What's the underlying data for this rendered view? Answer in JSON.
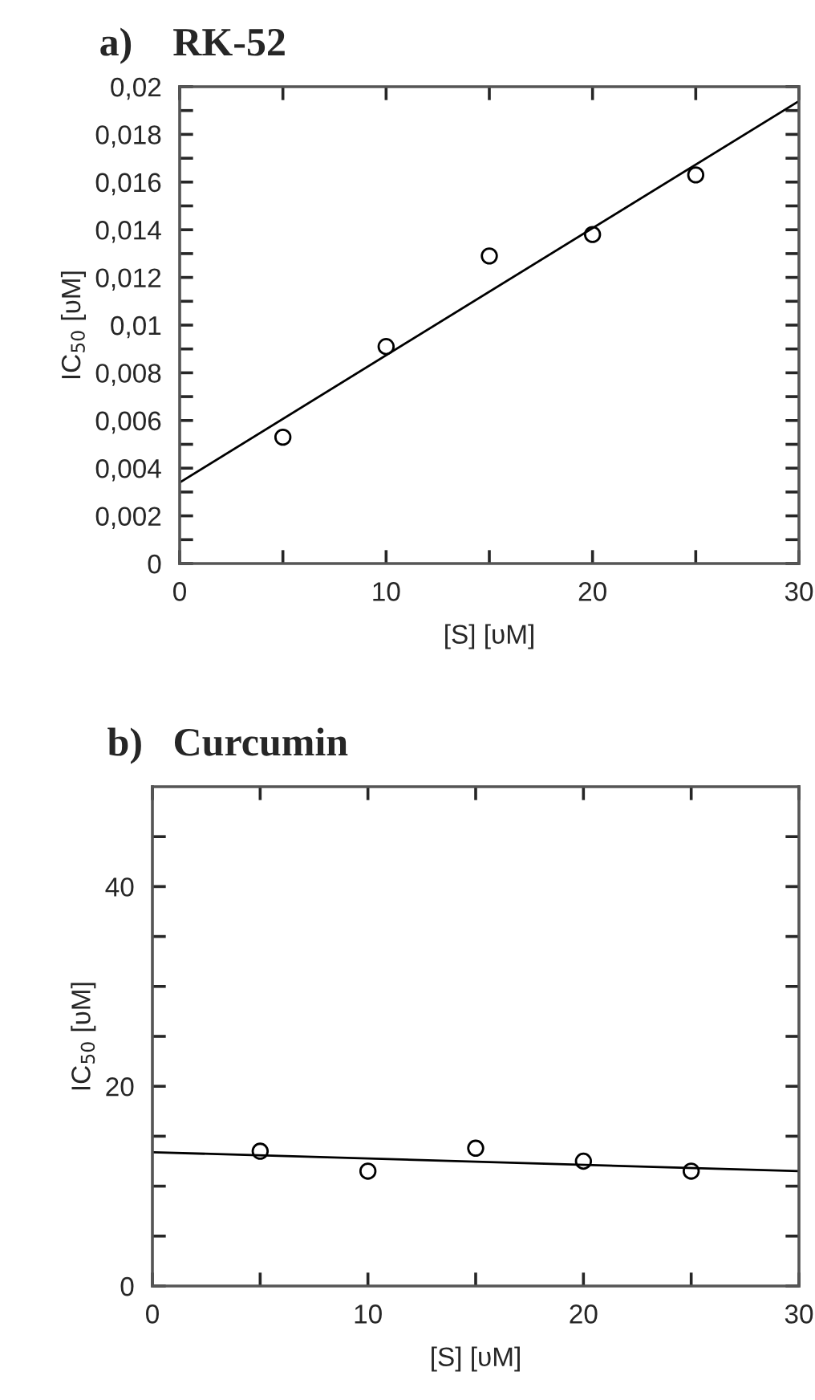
{
  "chart_data": [
    {
      "type": "scatter",
      "title": "a)    RK-52",
      "xlabel": "[S] [υM]",
      "ylabel": "IC$_{50}$ [υM]",
      "xlim": [
        0,
        30
      ],
      "ylim": [
        0,
        0.02
      ],
      "xticks": [
        0,
        {
          "value": 5,
          "label": null
        },
        10,
        {
          "value": 15,
          "label": null
        },
        20,
        {
          "value": 25,
          "label": null
        },
        30
      ],
      "yticks": [
        {
          "value": 0,
          "label": "0"
        },
        {
          "value": 0.001,
          "label": null
        },
        {
          "value": 0.002,
          "label": "0,002"
        },
        {
          "value": 0.003,
          "label": null
        },
        {
          "value": 0.004,
          "label": "0,004"
        },
        {
          "value": 0.005,
          "label": null
        },
        {
          "value": 0.006,
          "label": "0,006"
        },
        {
          "value": 0.007,
          "label": null
        },
        {
          "value": 0.008,
          "label": "0,008"
        },
        {
          "value": 0.009,
          "label": null
        },
        {
          "value": 0.01,
          "label": "0,01"
        },
        {
          "value": 0.011,
          "label": null
        },
        {
          "value": 0.012,
          "label": "0,012"
        },
        {
          "value": 0.013,
          "label": null
        },
        {
          "value": 0.014,
          "label": "0,014"
        },
        {
          "value": 0.015,
          "label": null
        },
        {
          "value": 0.016,
          "label": "0,016"
        },
        {
          "value": 0.017,
          "label": null
        },
        {
          "value": 0.018,
          "label": "0,018"
        },
        {
          "value": 0.019,
          "label": null
        },
        {
          "value": 0.02,
          "label": "0,02"
        }
      ],
      "grid": false,
      "legend": false,
      "series": [
        {
          "marker": "circle",
          "color": "#000000",
          "x": [
            5,
            10,
            15,
            20,
            25
          ],
          "values": [
            0.0053,
            0.0091,
            0.0129,
            0.0138,
            0.0163
          ]
        },
        {
          "type": "line",
          "marker": "none",
          "line_style": "solid",
          "color": "#000000",
          "x": [
            0,
            30
          ],
          "values": [
            0.0034,
            0.0194
          ]
        }
      ]
    },
    {
      "type": "scatter",
      "title": "b)   Curcumin",
      "xlabel": "[S] [υM]",
      "ylabel": "IC$_{50}$ [υM]",
      "xlim": [
        0,
        30
      ],
      "ylim": [
        0,
        50
      ],
      "xticks": [
        0,
        {
          "value": 5,
          "label": null
        },
        10,
        {
          "value": 15,
          "label": null
        },
        20,
        {
          "value": 25,
          "label": null
        },
        30
      ],
      "yticks": [
        0,
        {
          "value": 5,
          "label": null
        },
        {
          "value": 10,
          "label": null
        },
        {
          "value": 15,
          "label": null
        },
        20,
        {
          "value": 25,
          "label": null
        },
        {
          "value": 30,
          "label": null
        },
        {
          "value": 35,
          "label": null
        },
        40,
        {
          "value": 45,
          "label": null
        }
      ],
      "grid": false,
      "legend": false,
      "series": [
        {
          "marker": "circle",
          "color": "#000000",
          "x": [
            5,
            10,
            15,
            20,
            25
          ],
          "values": [
            13.5,
            11.5,
            13.8,
            12.5,
            11.5
          ]
        },
        {
          "type": "line",
          "marker": "none",
          "line_style": "solid",
          "color": "#000000",
          "x": [
            0,
            30
          ],
          "values": [
            13.4,
            11.5
          ]
        }
      ]
    }
  ]
}
